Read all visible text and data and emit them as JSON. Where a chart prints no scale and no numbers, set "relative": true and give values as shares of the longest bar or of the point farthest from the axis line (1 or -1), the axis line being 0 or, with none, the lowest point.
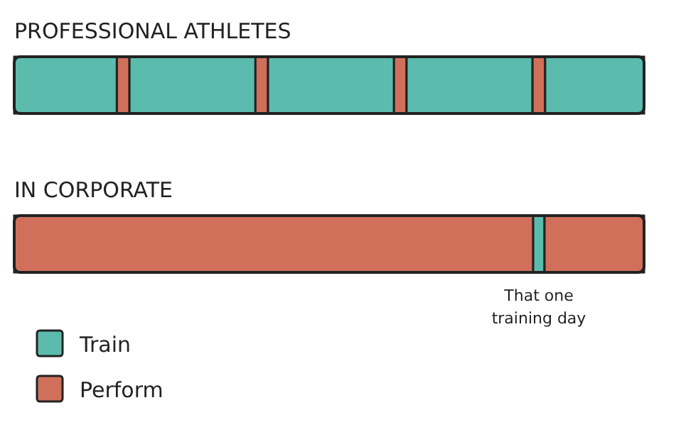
{
  "chart_data": {
    "type": "bar",
    "orientation": "horizontal",
    "stacked": true,
    "relative": true,
    "categories": [
      "PROFESSIONAL ATHLETES",
      "IN CORPORATE"
    ],
    "series": [
      {
        "name": "Perform",
        "color": "#d0705a",
        "values": [
          0,
          0.824
        ]
      },
      {
        "name": "Train",
        "color": "#5bbcae",
        "values": [
          0.163,
          0.018
        ]
      },
      {
        "color": "#d0705a",
        "values": [
          0.02,
          0.158
        ]
      },
      {
        "color": "#5bbcae",
        "values": [
          0.2,
          0
        ]
      },
      {
        "color": "#d0705a",
        "values": [
          0.02,
          0
        ]
      },
      {
        "color": "#5bbcae",
        "values": [
          0.2,
          0
        ]
      },
      {
        "color": "#d0705a",
        "values": [
          0.02,
          0
        ]
      },
      {
        "color": "#5bbcae",
        "values": [
          0.2,
          0
        ]
      },
      {
        "color": "#d0705a",
        "values": [
          0.02,
          0
        ]
      },
      {
        "color": "#5bbcae",
        "values": [
          0.157,
          0
        ]
      }
    ],
    "annotations": [
      {
        "text": "That one\ntraining day",
        "y": "IN CORPORATE"
      }
    ],
    "legend": "bottom left"
  }
}
